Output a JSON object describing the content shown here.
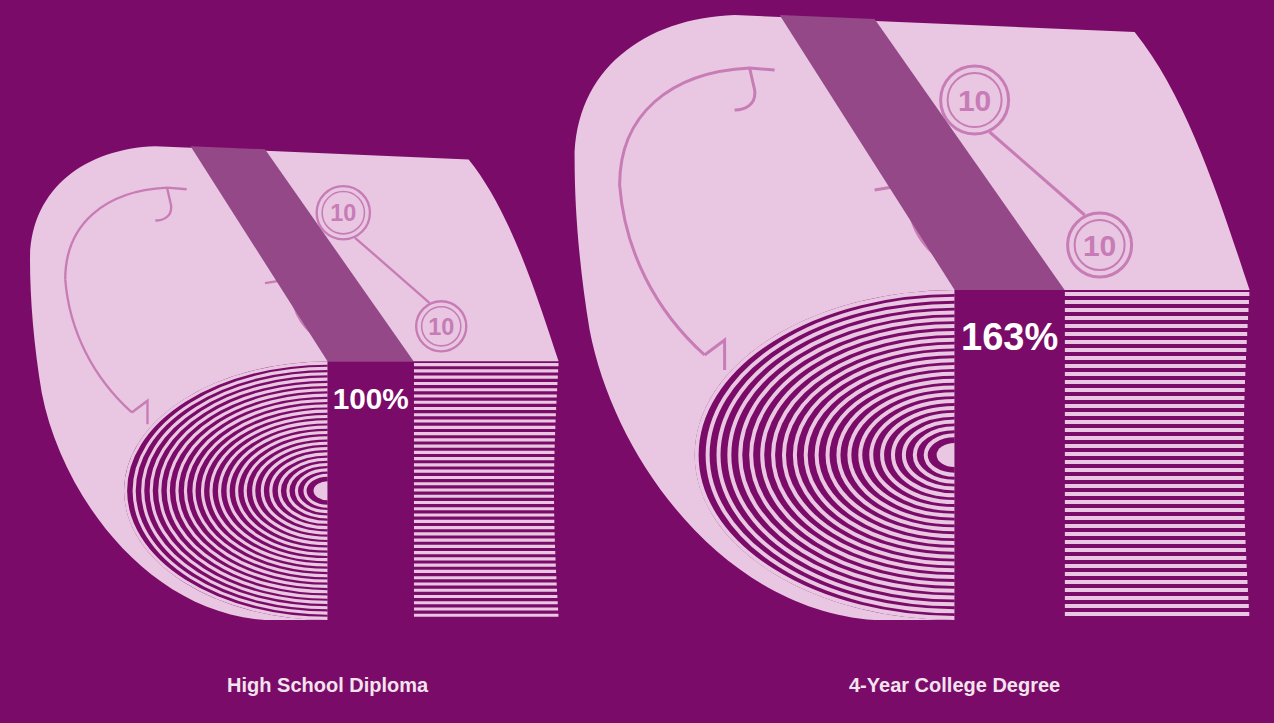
{
  "chart_data": {
    "type": "pictograph",
    "categories": [
      "High School Diploma",
      "4-Year College Degree"
    ],
    "values": [
      100,
      163
    ],
    "value_labels": [
      "100%",
      "163%"
    ],
    "data_labels": true,
    "color": "#e9c7e2",
    "bill_label": "10"
  }
}
